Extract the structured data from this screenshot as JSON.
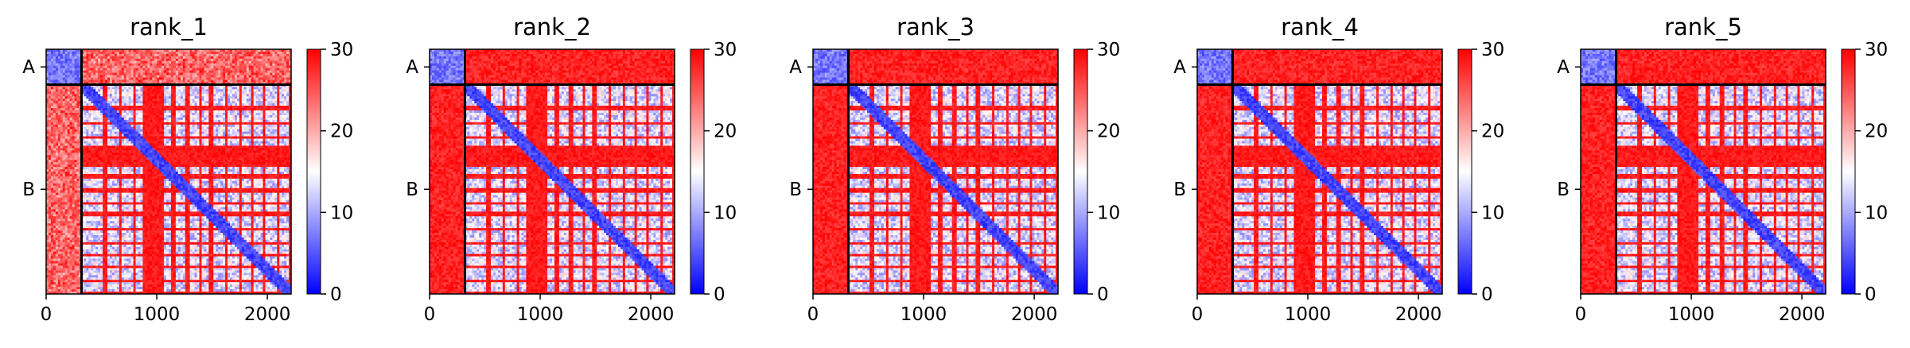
{
  "chart_data": [
    {
      "type": "heatmap",
      "title": "rank_1",
      "chains": [
        {
          "label": "A",
          "start": 0,
          "end": 320
        },
        {
          "label": "B",
          "start": 320,
          "end": 2215
        }
      ],
      "xticks": [
        0,
        1000,
        2000
      ],
      "xlim": [
        0,
        2215
      ],
      "colorbar": {
        "ticks": [
          0,
          10,
          20,
          30
        ],
        "range": [
          0,
          30
        ]
      },
      "colors": {
        "low": "#0000ff",
        "mid": "#ffffff",
        "high": "#ff0000"
      }
    },
    {
      "type": "heatmap",
      "title": "rank_2",
      "chains": [
        {
          "label": "A",
          "start": 0,
          "end": 320
        },
        {
          "label": "B",
          "start": 320,
          "end": 2215
        }
      ],
      "xticks": [
        0,
        1000,
        2000
      ],
      "xlim": [
        0,
        2215
      ],
      "colorbar": {
        "ticks": [
          0,
          10,
          20,
          30
        ],
        "range": [
          0,
          30
        ]
      },
      "colors": {
        "low": "#0000ff",
        "mid": "#ffffff",
        "high": "#ff0000"
      }
    },
    {
      "type": "heatmap",
      "title": "rank_3",
      "chains": [
        {
          "label": "A",
          "start": 0,
          "end": 320
        },
        {
          "label": "B",
          "start": 320,
          "end": 2215
        }
      ],
      "xticks": [
        0,
        1000,
        2000
      ],
      "xlim": [
        0,
        2215
      ],
      "colorbar": {
        "ticks": [
          0,
          10,
          20,
          30
        ],
        "range": [
          0,
          30
        ]
      },
      "colors": {
        "low": "#0000ff",
        "mid": "#ffffff",
        "high": "#ff0000"
      }
    },
    {
      "type": "heatmap",
      "title": "rank_4",
      "chains": [
        {
          "label": "A",
          "start": 0,
          "end": 320
        },
        {
          "label": "B",
          "start": 320,
          "end": 2215
        }
      ],
      "xticks": [
        0,
        1000,
        2000
      ],
      "xlim": [
        0,
        2215
      ],
      "colorbar": {
        "ticks": [
          0,
          10,
          20,
          30
        ],
        "range": [
          0,
          30
        ]
      },
      "colors": {
        "low": "#0000ff",
        "mid": "#ffffff",
        "high": "#ff0000"
      }
    },
    {
      "type": "heatmap",
      "title": "rank_5",
      "chains": [
        {
          "label": "A",
          "start": 0,
          "end": 320
        },
        {
          "label": "B",
          "start": 320,
          "end": 2215
        }
      ],
      "xticks": [
        0,
        1000,
        2000
      ],
      "xlim": [
        0,
        2215
      ],
      "colorbar": {
        "ticks": [
          0,
          10,
          20,
          30
        ],
        "range": [
          0,
          30
        ]
      },
      "colors": {
        "low": "#0000ff",
        "mid": "#ffffff",
        "high": "#ff0000"
      }
    }
  ]
}
